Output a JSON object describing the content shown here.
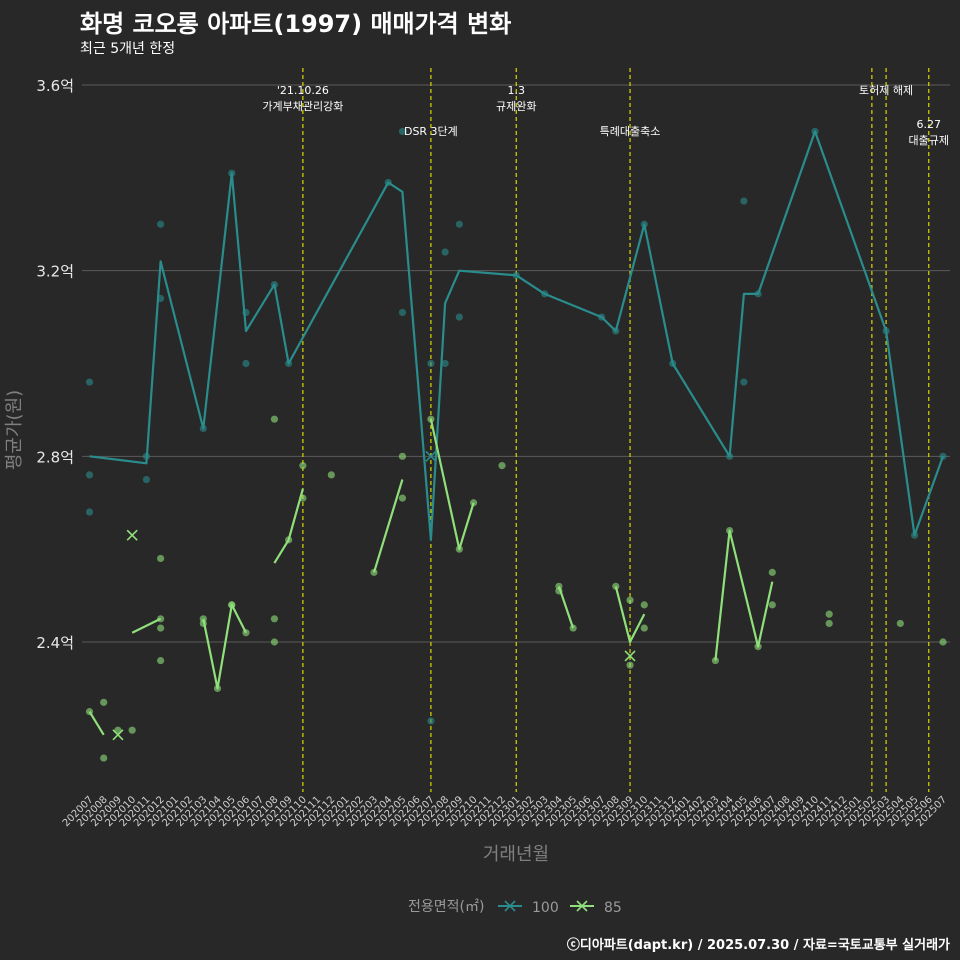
{
  "title": "화명 코오롱 아파트(1997) 매매가격 변화",
  "subtitle": "최근 5개년 한정",
  "caption": "ⓒ디아파트(dapt.kr) / 2025.07.30 / 자료=국토교통부 실거래가",
  "colors": {
    "s100": "#2a8c8c",
    "s85": "#8fe07a",
    "event": "#d8d800",
    "grid": "#5a5a5a",
    "background": "#282828"
  },
  "chart_data": {
    "type": "line",
    "xlabel": "거래년월",
    "ylabel": "평균가(원)",
    "y_unit": "억",
    "ylim": [
      2.1,
      3.63
    ],
    "y_ticks": [
      2.4,
      2.8,
      3.2,
      3.6
    ],
    "y_tick_labels": [
      "2.4억",
      "2.8억",
      "3.2억",
      "3.6억"
    ],
    "grid": true,
    "categories": [
      "202007",
      "202008",
      "202009",
      "202010",
      "202011",
      "202012",
      "202101",
      "202102",
      "202103",
      "202104",
      "202105",
      "202106",
      "202107",
      "202108",
      "202109",
      "202110",
      "202111",
      "202112",
      "202201",
      "202202",
      "202203",
      "202204",
      "202205",
      "202206",
      "202207",
      "202208",
      "202209",
      "202210",
      "202211",
      "202212",
      "202301",
      "202302",
      "202303",
      "202304",
      "202305",
      "202306",
      "202307",
      "202308",
      "202309",
      "202310",
      "202311",
      "202312",
      "202401",
      "202402",
      "202403",
      "202404",
      "202405",
      "202406",
      "202407",
      "202408",
      "202409",
      "202410",
      "202411",
      "202412",
      "202501",
      "202502",
      "202503",
      "202504",
      "202505",
      "202506",
      "202507"
    ],
    "legend": {
      "title": "전용면적(㎡)",
      "position": "bottom",
      "entries": [
        "100",
        "85"
      ]
    },
    "series": [
      {
        "name": "100",
        "color": "#2a8c8c",
        "line": [
          [
            0,
            2.8
          ],
          [
            4,
            2.785
          ],
          [
            5,
            3.22
          ],
          [
            8,
            2.86
          ],
          [
            10,
            3.41
          ],
          [
            11,
            3.07
          ],
          [
            13,
            3.17
          ],
          [
            14,
            3.0
          ],
          [
            21,
            3.39
          ],
          [
            22,
            3.37
          ],
          [
            24,
            2.62
          ],
          [
            25,
            3.13
          ],
          [
            26,
            3.2
          ],
          [
            30,
            3.19
          ],
          [
            32,
            3.15
          ],
          [
            36,
            3.1
          ],
          [
            37,
            3.07
          ],
          [
            39,
            3.3
          ],
          [
            41,
            3.0
          ],
          [
            45,
            2.8
          ],
          [
            46,
            3.15
          ],
          [
            47,
            3.15
          ],
          [
            51,
            3.5
          ],
          [
            56,
            3.07
          ],
          [
            58,
            2.63
          ],
          [
            60,
            2.8
          ]
        ],
        "points": [
          [
            0,
            2.96
          ],
          [
            0,
            2.76
          ],
          [
            0,
            2.68
          ],
          [
            4,
            2.8
          ],
          [
            4,
            2.75
          ],
          [
            5,
            3.3
          ],
          [
            5,
            3.14
          ],
          [
            8,
            2.86
          ],
          [
            10,
            3.41
          ],
          [
            11,
            3.11
          ],
          [
            11,
            3.0
          ],
          [
            13,
            3.17
          ],
          [
            14,
            3.0
          ],
          [
            21,
            3.39
          ],
          [
            22,
            3.5
          ],
          [
            22,
            3.11
          ],
          [
            24,
            2.23
          ],
          [
            24,
            3.0
          ],
          [
            25,
            3.24
          ],
          [
            25,
            3.0
          ],
          [
            26,
            3.3
          ],
          [
            26,
            3.1
          ],
          [
            30,
            3.19
          ],
          [
            32,
            3.15
          ],
          [
            36,
            3.1
          ],
          [
            37,
            3.07
          ],
          [
            39,
            3.3
          ],
          [
            41,
            3.0
          ],
          [
            45,
            2.8
          ],
          [
            46,
            3.35
          ],
          [
            46,
            2.96
          ],
          [
            47,
            3.15
          ],
          [
            51,
            3.5
          ],
          [
            56,
            3.07
          ],
          [
            58,
            2.63
          ],
          [
            60,
            2.8
          ]
        ],
        "crosses": [
          [
            24,
            2.8
          ]
        ]
      },
      {
        "name": "85",
        "color": "#8fe07a",
        "segments": [
          [
            [
              0,
              2.25
            ],
            [
              1,
              2.2
            ]
          ],
          [
            [
              3,
              2.42
            ],
            [
              5,
              2.45
            ]
          ],
          [
            [
              8,
              2.45
            ],
            [
              9,
              2.3
            ],
            [
              10,
              2.48
            ],
            [
              11,
              2.42
            ]
          ],
          [
            [
              13,
              2.57
            ],
            [
              14,
              2.62
            ],
            [
              15,
              2.73
            ]
          ],
          [
            [
              20,
              2.55
            ],
            [
              22,
              2.75
            ]
          ],
          [
            [
              24,
              2.88
            ],
            [
              26,
              2.6
            ],
            [
              27,
              2.7
            ]
          ],
          [
            [
              33,
              2.52
            ],
            [
              34,
              2.43
            ]
          ],
          [
            [
              37,
              2.52
            ],
            [
              38,
              2.4
            ],
            [
              39,
              2.46
            ]
          ],
          [
            [
              44,
              2.36
            ],
            [
              45,
              2.64
            ],
            [
              47,
              2.39
            ],
            [
              48,
              2.53
            ]
          ]
        ],
        "points": [
          [
            0,
            2.25
          ],
          [
            1,
            2.27
          ],
          [
            1,
            2.15
          ],
          [
            2,
            2.21
          ],
          [
            3,
            2.21
          ],
          [
            5,
            2.58
          ],
          [
            5,
            2.45
          ],
          [
            5,
            2.43
          ],
          [
            5,
            2.36
          ],
          [
            8,
            2.45
          ],
          [
            8,
            2.44
          ],
          [
            9,
            2.3
          ],
          [
            10,
            2.48
          ],
          [
            10,
            2.48
          ],
          [
            11,
            2.42
          ],
          [
            13,
            2.88
          ],
          [
            13,
            2.45
          ],
          [
            13,
            2.4
          ],
          [
            14,
            2.62
          ],
          [
            15,
            2.78
          ],
          [
            15,
            2.71
          ],
          [
            17,
            2.76
          ],
          [
            20,
            2.55
          ],
          [
            22,
            2.8
          ],
          [
            22,
            2.71
          ],
          [
            24,
            2.88
          ],
          [
            26,
            2.6
          ],
          [
            27,
            2.7
          ],
          [
            29,
            2.78
          ],
          [
            33,
            2.52
          ],
          [
            33,
            2.51
          ],
          [
            34,
            2.43
          ],
          [
            37,
            2.52
          ],
          [
            38,
            2.49
          ],
          [
            38,
            2.35
          ],
          [
            39,
            2.48
          ],
          [
            39,
            2.43
          ],
          [
            44,
            2.36
          ],
          [
            45,
            2.64
          ],
          [
            47,
            2.39
          ],
          [
            48,
            2.55
          ],
          [
            48,
            2.48
          ],
          [
            52,
            2.46
          ],
          [
            52,
            2.44
          ],
          [
            57,
            2.44
          ],
          [
            60,
            2.4
          ]
        ],
        "crosses": [
          [
            3,
            2.63
          ],
          [
            2,
            2.2
          ],
          [
            38,
            2.37
          ]
        ]
      }
    ],
    "events": [
      {
        "x": 15,
        "label": "'21.10.26\n가계부채관리강화",
        "row": 0
      },
      {
        "x": 24,
        "label": "DSR 3단계",
        "row": 1
      },
      {
        "x": 30,
        "label": "1.3\n규제완화",
        "row": 0
      },
      {
        "x": 38,
        "label": "특례대출축소",
        "row": 1
      },
      {
        "x": 55,
        "label": "",
        "row": 0
      },
      {
        "x": 56,
        "label": "토허제 해제",
        "row": 0
      },
      {
        "x": 59,
        "label": "6.27\n대출규제",
        "row": 1
      }
    ]
  }
}
